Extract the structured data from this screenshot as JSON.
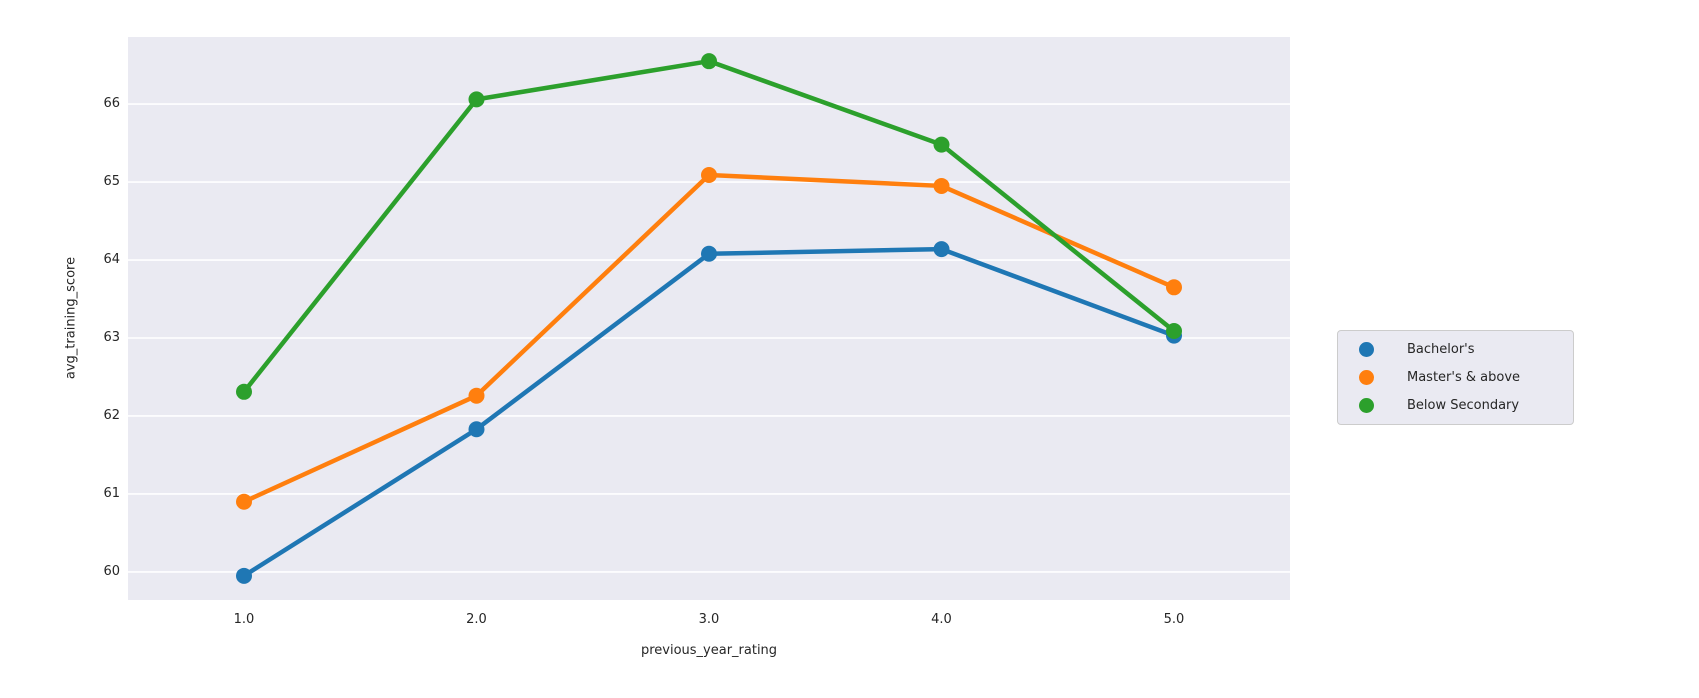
{
  "chart_data": {
    "type": "line",
    "x": [
      1.0,
      2.0,
      3.0,
      4.0,
      5.0
    ],
    "x_tick_labels": [
      "1.0",
      "2.0",
      "3.0",
      "4.0",
      "5.0"
    ],
    "y_ticks": [
      60,
      61,
      62,
      63,
      64,
      65,
      66
    ],
    "ylim": [
      59.64,
      66.86
    ],
    "xlabel": "previous_year_rating",
    "ylabel": "avg_training_score",
    "title": "",
    "grid": true,
    "legend_position": "right-outside",
    "series": [
      {
        "name": "Bachelor's",
        "color": "#1f77b4",
        "values": [
          59.95,
          61.83,
          64.08,
          64.14,
          63.03
        ]
      },
      {
        "name": "Master's & above",
        "color": "#ff7f0e",
        "values": [
          60.9,
          62.26,
          65.09,
          64.95,
          63.65
        ]
      },
      {
        "name": "Below Secondary",
        "color": "#2ca02c",
        "values": [
          62.31,
          66.06,
          66.55,
          65.48,
          63.09
        ]
      }
    ],
    "colors": {
      "plot_background": "#eaeaf2",
      "figure_background": "#ffffff",
      "grid_line": "#ffffff",
      "text": "#262626",
      "legend_background": "#eaeaf2",
      "legend_border": "#cccccc"
    }
  }
}
